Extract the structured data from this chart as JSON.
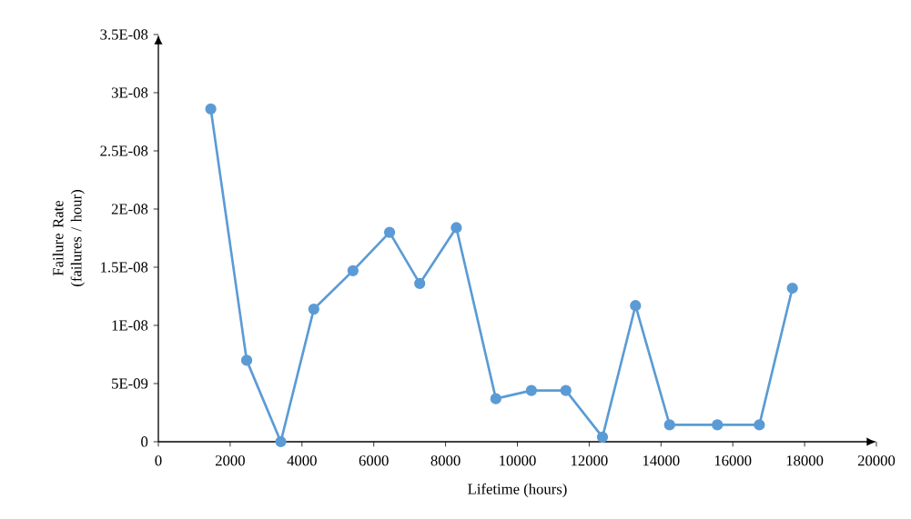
{
  "chart_data": {
    "type": "line",
    "xlabel": "Lifetime (hours)",
    "ylabel": "Failure Rate (failures / hour)",
    "x": [
      1460,
      2460,
      3410,
      4330,
      5420,
      6440,
      7280,
      8300,
      9400,
      10390,
      11350,
      12370,
      13290,
      14240,
      15570,
      16740,
      17660
    ],
    "series": [
      {
        "color": "#5b9bd5",
        "values": [
          2.86e-08,
          7e-09,
          0,
          1.14e-08,
          1.47e-08,
          1.8e-08,
          1.36e-08,
          1.84e-08,
          3.7e-09,
          4.4e-09,
          4.4e-09,
          4e-10,
          1.17e-08,
          1.45e-09,
          1.45e-09,
          1.45e-09,
          1.32e-08
        ]
      }
    ],
    "xlim": [
      0,
      20000
    ],
    "xticks": [
      0,
      2000,
      4000,
      6000,
      8000,
      10000,
      12000,
      14000,
      16000,
      18000,
      20000
    ],
    "ylim": [
      0,
      3.5e-08
    ],
    "yticks": [
      0,
      {
        "value": 5e-09,
        "label": "5E-09"
      },
      {
        "value": 1e-08,
        "label": "1E-08"
      },
      {
        "value": 1.5e-08,
        "label": "1.5E-08"
      },
      {
        "value": 2e-08,
        "label": "2E-08"
      },
      {
        "value": 2.5e-08,
        "label": "2.5E-08"
      },
      {
        "value": 3e-08,
        "label": "3E-08"
      },
      {
        "value": 3.5e-08,
        "label": "3.5E-08"
      }
    ],
    "marker": "circle",
    "line_style": "solid"
  }
}
